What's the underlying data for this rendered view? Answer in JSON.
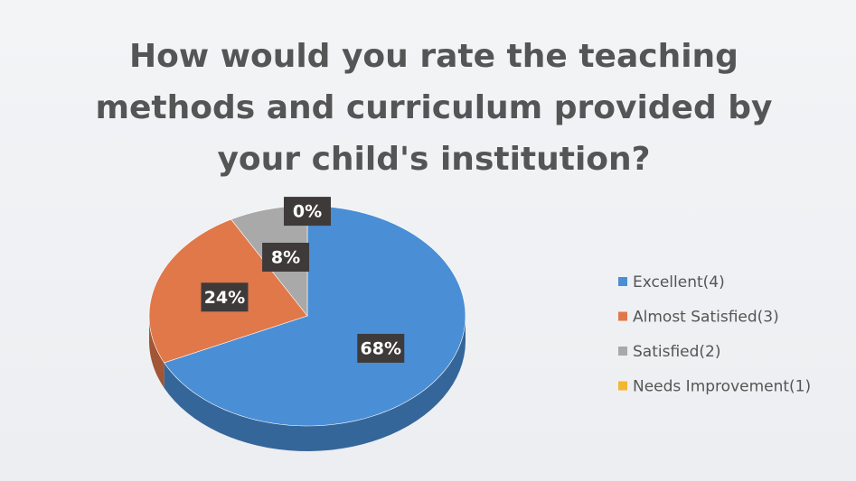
{
  "chart_data": {
    "type": "pie",
    "title": "How would you rate the teaching methods and curriculum provided by your child's institution?",
    "categories": [
      "Excellent(4)",
      "Almost Satisfied(3)",
      "Satisfied(2)",
      "Needs Improvement(1)"
    ],
    "values": [
      68,
      24,
      8,
      0
    ],
    "value_labels": [
      "68%",
      "24%",
      "8%",
      "0%"
    ],
    "colors": [
      "#4a8ed6",
      "#e0784a",
      "#a9a9a9",
      "#f2b632"
    ],
    "legend": "right"
  }
}
